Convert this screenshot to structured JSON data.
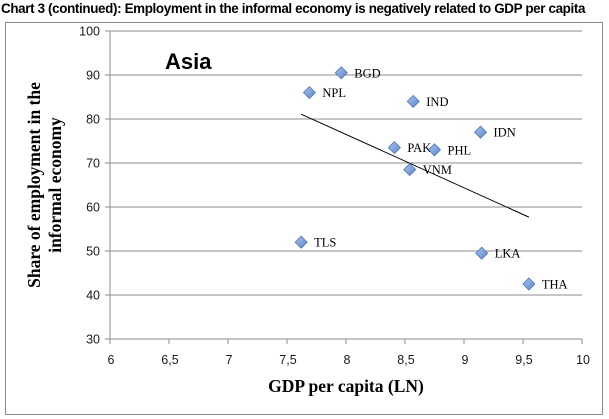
{
  "page_title": "Chart 3 (continued): Employment in the informal economy is negatively related to GDP per capita",
  "chart_data": {
    "type": "scatter",
    "title": "Chart 3 (continued): Employment in the informal economy is negatively related to GDP per capita",
    "annotation": "Asia",
    "xlabel": "GDP per capita (LN)",
    "ylabel_lines": [
      "Share of employment in the",
      "informal economy"
    ],
    "ylabel": "Share of employment in the informal economy",
    "xlim": [
      6,
      10
    ],
    "ylim": [
      30,
      100
    ],
    "x_ticks": [
      6,
      6.5,
      7,
      7.5,
      8,
      8.5,
      9,
      9.5,
      10
    ],
    "x_tick_labels": [
      "6",
      "6,5",
      "7",
      "7,5",
      "8",
      "8,5",
      "9",
      "9,5",
      "10"
    ],
    "y_ticks": [
      30,
      40,
      50,
      60,
      70,
      80,
      90,
      100
    ],
    "y_tick_labels": [
      "30",
      "40",
      "50",
      "60",
      "70",
      "80",
      "90",
      "100"
    ],
    "grid": "horizontal",
    "marker_color": "#6f97d4",
    "marker_border": "#4a74b8",
    "points": [
      {
        "label": "BGD",
        "x": 7.96,
        "y": 90.5
      },
      {
        "label": "NPL",
        "x": 7.69,
        "y": 86
      },
      {
        "label": "IND",
        "x": 8.57,
        "y": 84
      },
      {
        "label": "IDN",
        "x": 9.14,
        "y": 77
      },
      {
        "label": "PAK",
        "x": 8.41,
        "y": 73.5
      },
      {
        "label": "PHL",
        "x": 8.75,
        "y": 73
      },
      {
        "label": "VNM",
        "x": 8.54,
        "y": 68.5
      },
      {
        "label": "TLS",
        "x": 7.62,
        "y": 52
      },
      {
        "label": "LKA",
        "x": 9.15,
        "y": 49.5
      },
      {
        "label": "THA",
        "x": 9.55,
        "y": 42.5
      }
    ],
    "trendline": {
      "type": "linear",
      "x": [
        7.62,
        9.55
      ],
      "y": [
        81.1,
        57.7
      ]
    }
  }
}
